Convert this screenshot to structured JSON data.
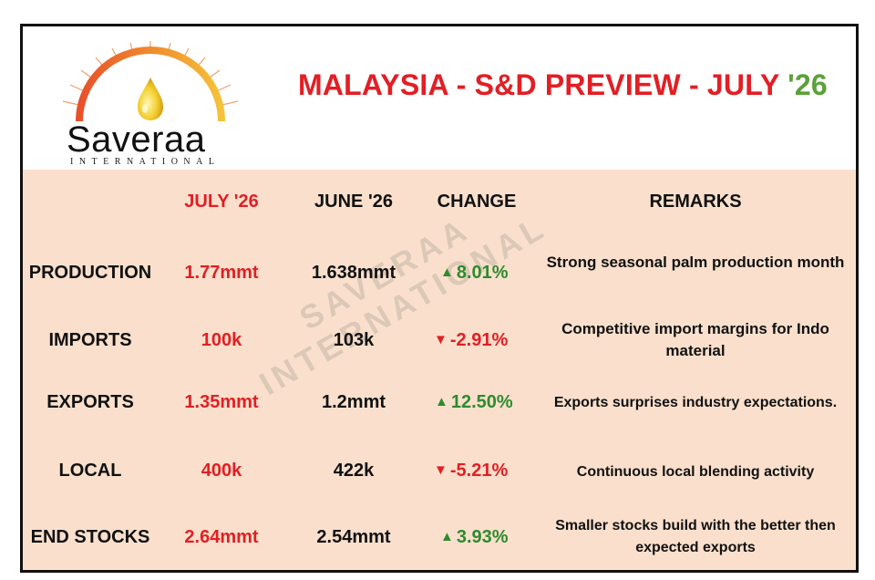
{
  "logo": {
    "name": "Saveraa",
    "subtitle": "INTERNATIONAL"
  },
  "title": {
    "main": "MALAYSIA - S&D PREVIEW - JULY ",
    "year": "'26"
  },
  "watermark": {
    "line1": "SAVERAA",
    "line2": "INTERNATIONAL"
  },
  "headers": {
    "col1": "JULY '26",
    "col2": "JUNE '26",
    "col3": "CHANGE",
    "col4": "REMARKS"
  },
  "rows": [
    {
      "label": "PRODUCTION",
      "jul": "1.77mmt",
      "jun": "1.638mmt",
      "change": "8.01%",
      "direction": "up",
      "remark": "Strong seasonal palm production month"
    },
    {
      "label": "IMPORTS",
      "jul": "100k",
      "jun": "103k",
      "change": "-2.91%",
      "direction": "down",
      "remark": "Competitive import margins for Indo material"
    },
    {
      "label": "EXPORTS",
      "jul": "1.35mmt",
      "jun": "1.2mmt",
      "change": "12.50%",
      "direction": "up",
      "remark": "Exports surprises industry expectations."
    },
    {
      "label": "LOCAL",
      "jul": "400k",
      "jun": "422k",
      "change": "-5.21%",
      "direction": "down",
      "remark": "Continuous local blending activity"
    },
    {
      "label": "END STOCKS",
      "jul": "2.64mmt",
      "jun": "2.54mmt",
      "change": "3.93%",
      "direction": "up",
      "remark": "Smaller stocks build with the better then expected exports"
    }
  ],
  "colors": {
    "red": "#e31e24",
    "green": "#2e8b2e",
    "panel": "#fae0cc",
    "year": "#5aa13a"
  },
  "icons": {
    "up": "triangle-up-icon",
    "down": "triangle-down-icon"
  }
}
